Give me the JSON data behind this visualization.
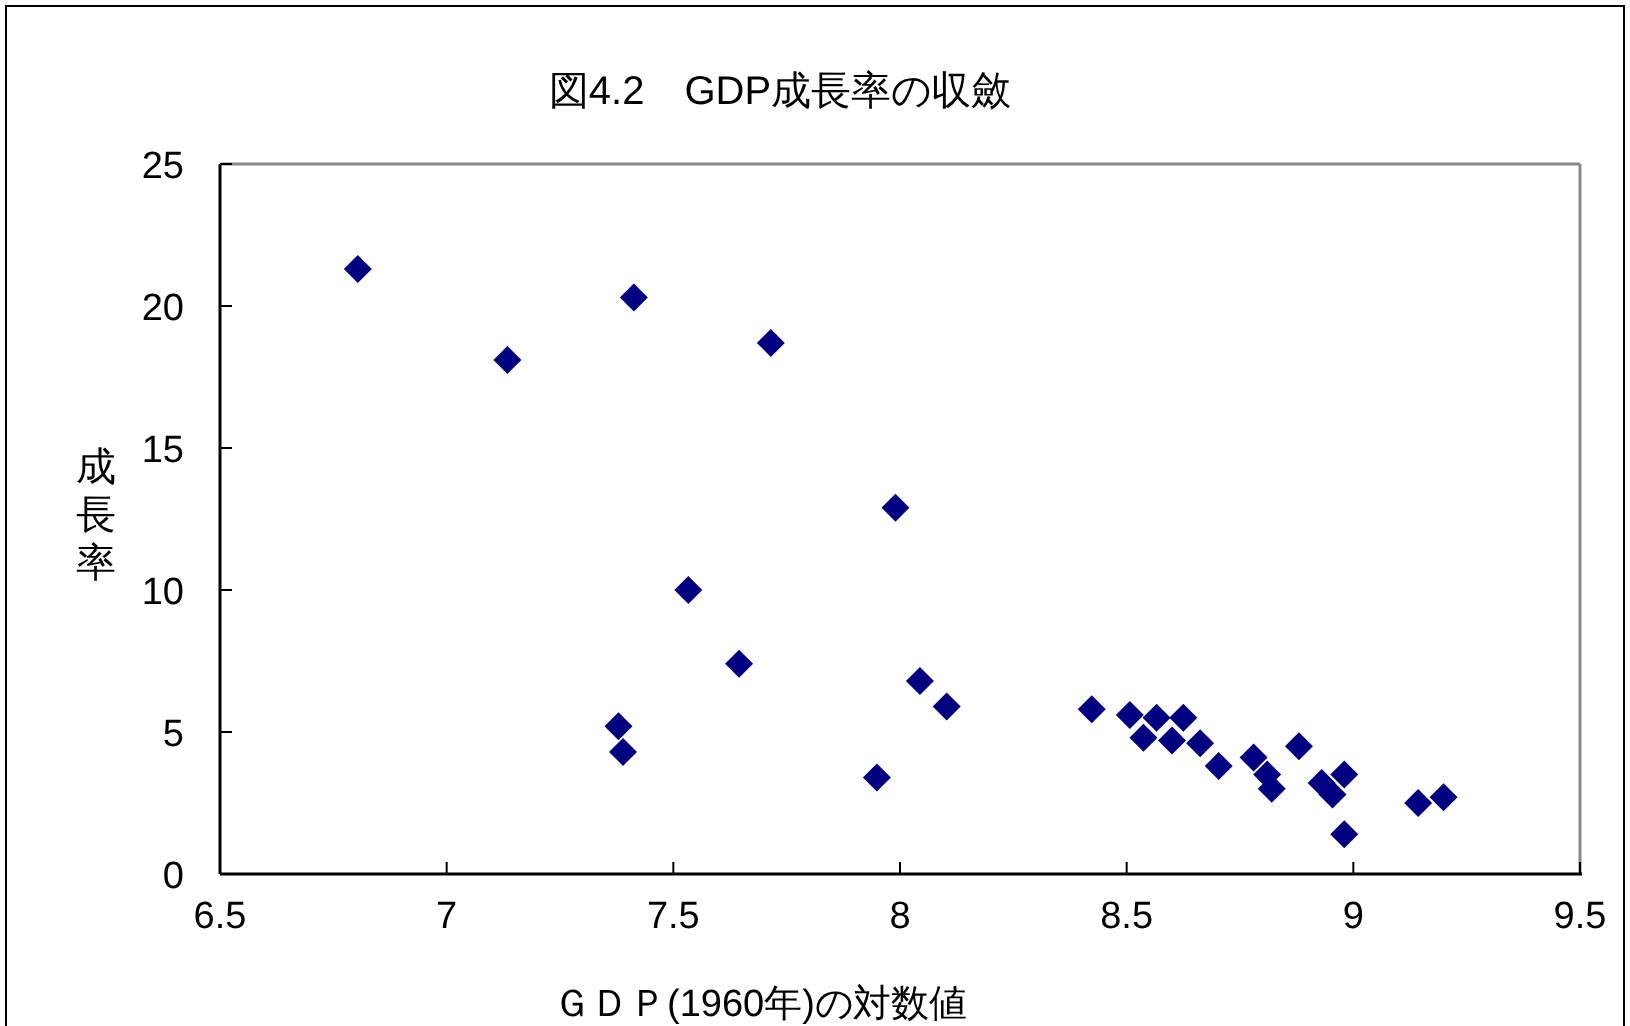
{
  "chart_data": {
    "type": "scatter",
    "title": "図4.2　GDP成長率の収斂",
    "xlabel": "ＧＤＰ(1960年)の対数値",
    "ylabel": "成長率",
    "xlim": [
      6.5,
      9.5
    ],
    "xticks": [
      6.5,
      7,
      7.5,
      8,
      8.5,
      9,
      9.5
    ],
    "ylim": [
      0,
      25
    ],
    "yticks": [
      0,
      5,
      10,
      15,
      20,
      25
    ],
    "grid": false,
    "marker": "diamond",
    "series": [
      {
        "color": "#000080",
        "x": [
          6.804,
          7.134,
          7.413,
          7.715,
          7.99,
          7.533,
          7.645,
          7.379,
          7.389,
          7.949,
          8.044,
          8.103,
          8.423,
          8.507,
          8.537,
          8.566,
          8.6,
          8.625,
          8.662,
          8.703,
          8.78,
          8.81,
          8.82,
          8.88,
          8.93,
          8.954,
          8.98,
          8.98,
          9.143,
          9.199
        ],
        "values": [
          21.3,
          18.1,
          20.3,
          18.7,
          12.9,
          10.0,
          7.4,
          5.2,
          4.3,
          3.4,
          6.8,
          5.9,
          5.8,
          5.6,
          4.8,
          5.5,
          4.7,
          5.5,
          4.6,
          3.8,
          4.1,
          3.5,
          3.0,
          4.5,
          3.2,
          2.8,
          3.5,
          1.4,
          2.5,
          2.7
        ]
      }
    ]
  }
}
